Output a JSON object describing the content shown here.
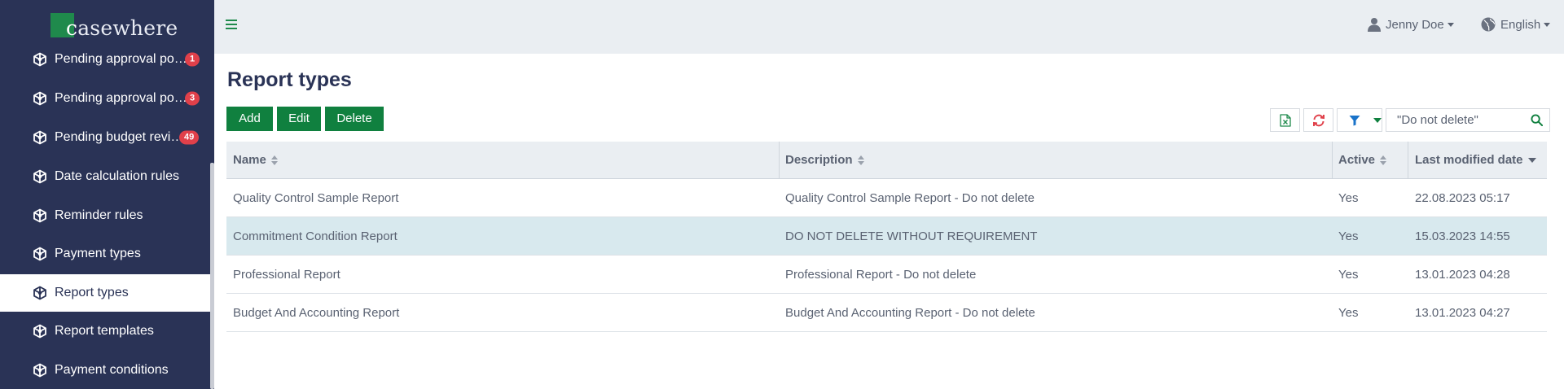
{
  "logo": {
    "first_letter": "c",
    "rest": "asewhere"
  },
  "sidebar": {
    "items": [
      {
        "label": "Pending approval po…",
        "badge": "1",
        "active": false
      },
      {
        "label": "Pending approval po…",
        "badge": "3",
        "active": false
      },
      {
        "label": "Pending budget revi…",
        "badge": "49",
        "active": false
      },
      {
        "label": "Date calculation rules",
        "badge": null,
        "active": false
      },
      {
        "label": "Reminder rules",
        "badge": null,
        "active": false
      },
      {
        "label": "Payment types",
        "badge": null,
        "active": false
      },
      {
        "label": "Report types",
        "badge": null,
        "active": true
      },
      {
        "label": "Report templates",
        "badge": null,
        "active": false
      },
      {
        "label": "Payment conditions",
        "badge": null,
        "active": false
      }
    ]
  },
  "header": {
    "user_name": "Jenny Doe",
    "language": "English"
  },
  "page": {
    "title": "Report types"
  },
  "toolbar": {
    "add_label": "Add",
    "edit_label": "Edit",
    "delete_label": "Delete",
    "search_value": "\"Do not delete\""
  },
  "table": {
    "columns": [
      {
        "label": "Name",
        "sort": "none"
      },
      {
        "label": "Description",
        "sort": "none"
      },
      {
        "label": "Active",
        "sort": "none"
      },
      {
        "label": "Last modified date",
        "sort": "desc"
      }
    ],
    "rows": [
      {
        "name": "Quality Control Sample Report",
        "description": "Quality Control Sample Report - Do not delete",
        "active": "Yes",
        "modified": "22.08.2023 05:17",
        "highlight": false
      },
      {
        "name": "Commitment Condition Report",
        "description": "DO NOT DELETE WITHOUT REQUIREMENT",
        "active": "Yes",
        "modified": "15.03.2023 14:55",
        "highlight": true
      },
      {
        "name": "Professional Report",
        "description": "Professional Report - Do not delete",
        "active": "Yes",
        "modified": "13.01.2023 04:28",
        "highlight": false
      },
      {
        "name": "Budget And Accounting Report",
        "description": "Budget And Accounting Report - Do not delete",
        "active": "Yes",
        "modified": "13.01.2023 04:27",
        "highlight": false
      }
    ]
  },
  "colors": {
    "sidebar_bg": "#2a3356",
    "brand_green": "#10803f",
    "badge_red": "#e0404a",
    "row_highlight": "#d8e9ee",
    "refresh_red": "#e0404a",
    "filter_blue": "#1a73c9"
  }
}
